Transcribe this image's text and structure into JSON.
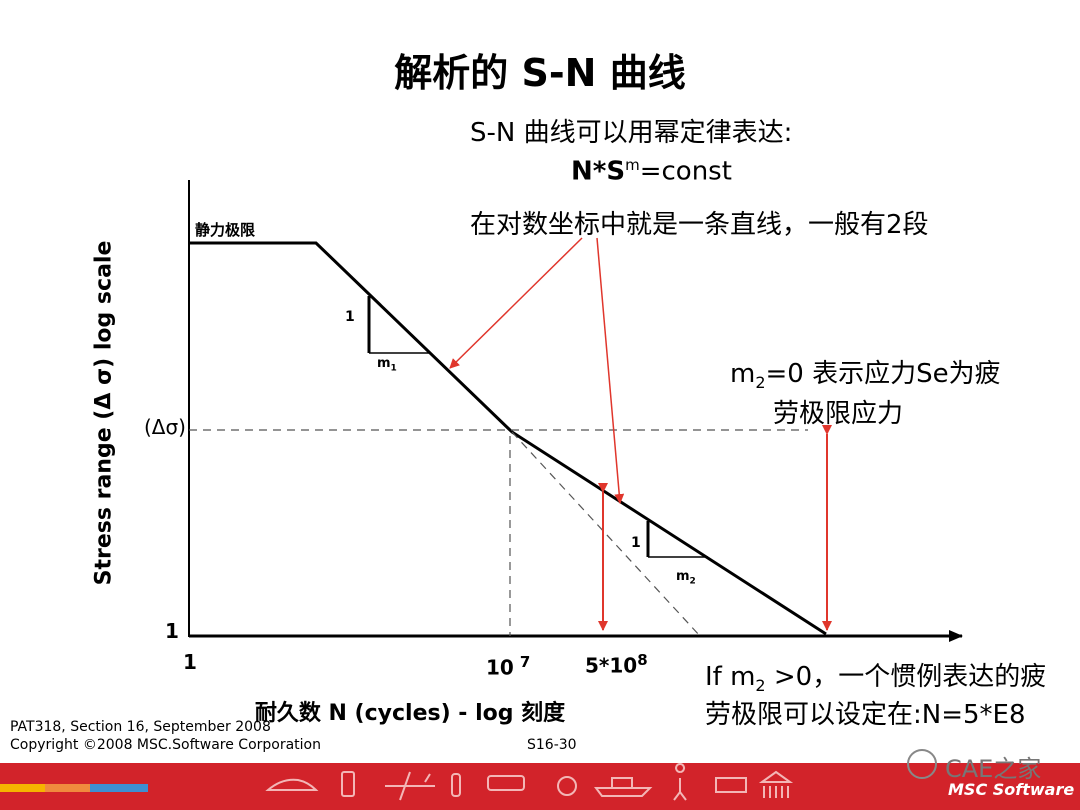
{
  "slide": {
    "title": "解析的 S-N 曲线",
    "note_line1": "S-N 曲线可以用幂定律表达:",
    "formula_n": "N*S",
    "formula_m": "m",
    "formula_rest": "=const",
    "note_line3": "在对数坐标中就是一条直线，一般有2段"
  },
  "diagram": {
    "y_axis_label": "Stress range (Δ σ) log scale",
    "x_axis_label": "耐久数 N (cycles) - log 刻度",
    "static_limit": "静力极限",
    "delta_sigma": "(Δσ)",
    "y_one": "1",
    "x_one": "1",
    "x_1e7_base": "10",
    "x_1e7_exp": "7",
    "x_5e8_base": "5*10",
    "x_5e8_exp": "8",
    "slope1_rise": "1",
    "slope1_run": "m",
    "slope1_sub": "1",
    "slope2_rise": "1",
    "slope2_run": "m",
    "slope2_sub": "2"
  },
  "annotations": {
    "m2_zero_pre": "m",
    "m2_zero_sub": "2",
    "m2_zero_post": "=0  表示应力Se为疲",
    "m2_zero_line2": "劳极限应力",
    "m2_pos_pre": "If m",
    "m2_pos_sub": "2",
    "m2_pos_post": " >0，一个惯例表达的疲",
    "m2_pos_line2": "劳极限可以设定在:N=5*E8"
  },
  "footer": {
    "course": "PAT318, Section 16, September 2008",
    "copyright": "Copyright ©2008 MSC.Software Corporation",
    "page": "S16-30",
    "watermark": "CAE之家",
    "brand": "MSC Software"
  },
  "colors": {
    "accent_red": "#d2232a",
    "arrow_red": "#e0362c"
  }
}
